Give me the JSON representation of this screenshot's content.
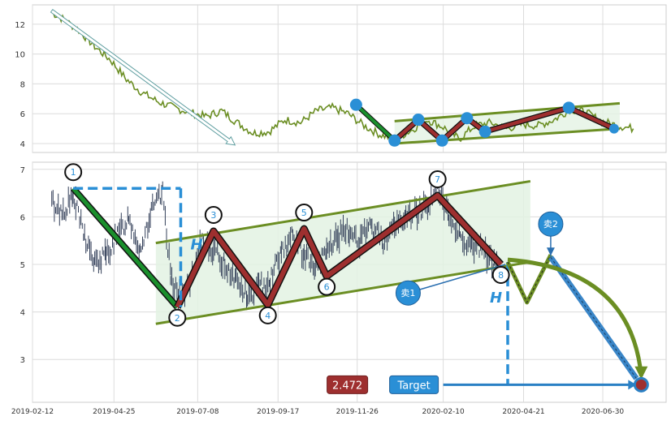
{
  "chart_data": [
    {
      "type": "line",
      "panel": "overview",
      "xlim": [
        "2019-02-12",
        "2020-08-25"
      ],
      "ylim": [
        3.4,
        13.3
      ],
      "y_ticks": [
        4,
        6,
        8,
        10,
        12
      ],
      "grid": true,
      "colors": {
        "price": "#6b8e23",
        "channel": "#6b8e23",
        "fill": "#e3f2e3",
        "pattern": "#9e2f2f",
        "leg_down": "#1a8f2c",
        "node": "#2a8fd6",
        "arrow": "#5f9ea0"
      },
      "close_series": [
        {
          "x": "2019-03-01",
          "y": 12.8
        },
        {
          "x": "2019-03-12",
          "y": 12.3
        },
        {
          "x": "2019-03-25",
          "y": 11.6
        },
        {
          "x": "2019-04-08",
          "y": 10.5
        },
        {
          "x": "2019-04-22",
          "y": 9.6
        },
        {
          "x": "2019-05-06",
          "y": 8.3
        },
        {
          "x": "2019-05-20",
          "y": 7.4
        },
        {
          "x": "2019-06-03",
          "y": 6.8
        },
        {
          "x": "2019-06-17",
          "y": 6.4
        },
        {
          "x": "2019-07-01",
          "y": 6.1
        },
        {
          "x": "2019-07-15",
          "y": 5.8
        },
        {
          "x": "2019-07-29",
          "y": 6.2
        },
        {
          "x": "2019-08-12",
          "y": 5.4
        },
        {
          "x": "2019-08-26",
          "y": 4.7
        },
        {
          "x": "2019-09-09",
          "y": 4.8
        },
        {
          "x": "2019-09-23",
          "y": 5.6
        },
        {
          "x": "2019-10-07",
          "y": 5.4
        },
        {
          "x": "2019-10-21",
          "y": 6.2
        },
        {
          "x": "2019-11-04",
          "y": 6.4
        },
        {
          "x": "2019-11-18",
          "y": 6.0
        },
        {
          "x": "2019-12-02",
          "y": 5.2
        },
        {
          "x": "2019-12-16",
          "y": 4.6
        },
        {
          "x": "2019-12-30",
          "y": 4.3
        },
        {
          "x": "2020-01-13",
          "y": 4.9
        },
        {
          "x": "2020-01-27",
          "y": 5.6
        },
        {
          "x": "2020-02-10",
          "y": 5.1
        },
        {
          "x": "2020-02-24",
          "y": 4.3
        },
        {
          "x": "2020-03-09",
          "y": 5.2
        },
        {
          "x": "2020-03-23",
          "y": 5.4
        },
        {
          "x": "2020-04-06",
          "y": 5.0
        },
        {
          "x": "2020-04-20",
          "y": 5.3
        },
        {
          "x": "2020-05-04",
          "y": 5.2
        },
        {
          "x": "2020-05-18",
          "y": 5.6
        },
        {
          "x": "2020-06-01",
          "y": 6.3
        },
        {
          "x": "2020-06-15",
          "y": 6.1
        },
        {
          "x": "2020-06-29",
          "y": 5.5
        },
        {
          "x": "2020-07-13",
          "y": 5.2
        },
        {
          "x": "2020-07-27",
          "y": 5.0
        }
      ],
      "arrow": [
        {
          "x": "2019-03-01",
          "y": 12.9
        },
        {
          "x": "2019-08-10",
          "y": 3.9
        }
      ],
      "pattern_points": [
        {
          "x": "2019-11-25",
          "y": 6.6
        },
        {
          "x": "2019-12-29",
          "y": 4.2
        },
        {
          "x": "2020-01-19",
          "y": 5.6
        },
        {
          "x": "2020-02-09",
          "y": 4.2
        },
        {
          "x": "2020-03-02",
          "y": 5.7
        },
        {
          "x": "2020-03-18",
          "y": 4.8
        },
        {
          "x": "2020-05-31",
          "y": 6.4
        },
        {
          "x": "2020-07-10",
          "y": 5.0
        }
      ],
      "channel_upper": [
        {
          "x": "2019-12-29",
          "y": 5.5
        },
        {
          "x": "2020-07-15",
          "y": 6.7
        }
      ],
      "channel_lower": [
        {
          "x": "2019-12-29",
          "y": 4.0
        },
        {
          "x": "2020-07-15",
          "y": 5.0
        }
      ]
    },
    {
      "type": "candlestick",
      "panel": "detail",
      "xlim": [
        "2019-02-12",
        "2020-08-25"
      ],
      "ylim": [
        2.1,
        7.15
      ],
      "y_ticks": [
        3,
        4,
        5,
        6,
        7
      ],
      "x_ticks": [
        "2019-02-12",
        "2019-04-25",
        "2019-07-08",
        "2019-09-17",
        "2019-11-26",
        "2020-02-10",
        "2020-04-21",
        "2020-06-30"
      ],
      "grid": true,
      "colors": {
        "candle": "#34405a",
        "channel": "#6b8e23",
        "fill": "#e3f2e3",
        "pattern": "#9e2f2f",
        "leg_down": "#1a8f2c",
        "blue": "#2a8fd6",
        "target_box": "#9e2f2f"
      },
      "price_series": [
        {
          "x": "2019-03-01",
          "y": 6.3
        },
        {
          "x": "2019-03-10",
          "y": 6.1
        },
        {
          "x": "2019-03-20",
          "y": 6.4
        },
        {
          "x": "2019-03-30",
          "y": 5.6
        },
        {
          "x": "2019-04-08",
          "y": 5.0
        },
        {
          "x": "2019-04-18",
          "y": 5.2
        },
        {
          "x": "2019-04-28",
          "y": 5.6
        },
        {
          "x": "2019-05-08",
          "y": 6.0
        },
        {
          "x": "2019-05-18",
          "y": 5.3
        },
        {
          "x": "2019-05-28",
          "y": 6.1
        },
        {
          "x": "2019-06-07",
          "y": 6.5
        },
        {
          "x": "2019-06-14",
          "y": 4.8
        },
        {
          "x": "2019-06-22",
          "y": 4.3
        },
        {
          "x": "2019-07-02",
          "y": 4.6
        },
        {
          "x": "2019-07-12",
          "y": 5.5
        },
        {
          "x": "2019-07-22",
          "y": 5.3
        },
        {
          "x": "2019-08-01",
          "y": 5.0
        },
        {
          "x": "2019-08-11",
          "y": 4.7
        },
        {
          "x": "2019-08-21",
          "y": 4.3
        },
        {
          "x": "2019-08-31",
          "y": 4.5
        },
        {
          "x": "2019-09-10",
          "y": 4.7
        },
        {
          "x": "2019-09-20",
          "y": 5.3
        },
        {
          "x": "2019-09-30",
          "y": 5.6
        },
        {
          "x": "2019-10-10",
          "y": 5.2
        },
        {
          "x": "2019-10-20",
          "y": 4.9
        },
        {
          "x": "2019-10-30",
          "y": 5.3
        },
        {
          "x": "2019-11-09",
          "y": 5.6
        },
        {
          "x": "2019-11-19",
          "y": 5.7
        },
        {
          "x": "2019-11-29",
          "y": 5.5
        },
        {
          "x": "2019-12-09",
          "y": 5.8
        },
        {
          "x": "2019-12-19",
          "y": 5.5
        },
        {
          "x": "2019-12-29",
          "y": 5.8
        },
        {
          "x": "2020-01-08",
          "y": 6.0
        },
        {
          "x": "2020-01-18",
          "y": 6.1
        },
        {
          "x": "2020-01-28",
          "y": 6.3
        },
        {
          "x": "2020-02-05",
          "y": 6.6
        },
        {
          "x": "2020-02-15",
          "y": 6.0
        },
        {
          "x": "2020-02-25",
          "y": 5.6
        },
        {
          "x": "2020-03-06",
          "y": 5.4
        },
        {
          "x": "2020-03-16",
          "y": 5.3
        },
        {
          "x": "2020-03-26",
          "y": 5.0
        },
        {
          "x": "2020-03-30",
          "y": 5.1
        }
      ],
      "pattern_points": [
        {
          "x": "2019-03-20",
          "y": 6.6,
          "label": "1"
        },
        {
          "x": "2019-06-20",
          "y": 4.1,
          "label": "2"
        },
        {
          "x": "2019-07-22",
          "y": 5.7,
          "label": "3"
        },
        {
          "x": "2019-09-08",
          "y": 4.15,
          "label": "4"
        },
        {
          "x": "2019-10-10",
          "y": 5.75,
          "label": "5"
        },
        {
          "x": "2019-10-30",
          "y": 4.75,
          "label": "6"
        },
        {
          "x": "2020-02-05",
          "y": 6.45,
          "label": "7"
        },
        {
          "x": "2020-04-01",
          "y": 5.0,
          "label": "8"
        }
      ],
      "channel_upper": [
        {
          "x": "2019-06-01",
          "y": 5.45
        },
        {
          "x": "2020-04-27",
          "y": 6.75
        }
      ],
      "channel_lower": [
        {
          "x": "2019-06-01",
          "y": 3.75
        },
        {
          "x": "2020-04-27",
          "y": 5.05
        }
      ],
      "h_marker_1": {
        "x": "2019-06-23",
        "y_top": 6.6,
        "y_bottom": 4.1,
        "x_start": "2019-03-20",
        "label": "H"
      },
      "h_marker_2": {
        "x": "2020-04-07",
        "y_top": 5.05,
        "y_bottom": 2.47,
        "label": "H"
      },
      "projection": [
        {
          "x": "2020-04-07",
          "y": 5.05
        },
        {
          "x": "2020-04-24",
          "y": 4.2
        },
        {
          "x": "2020-05-15",
          "y": 5.2
        }
      ],
      "sell_1": {
        "label": "卖1",
        "x": "2020-04-05",
        "y": 5.0,
        "bubble_x": "2020-01-10",
        "bubble_y": 4.4
      },
      "sell_2": {
        "label": "卖2",
        "x": "2020-05-15",
        "y": 5.15,
        "bubble_x": "2020-05-15",
        "bubble_y": 5.85
      },
      "target": {
        "label": "Target",
        "value": "2.472",
        "x": "2020-08-03",
        "y": 2.47,
        "arrow_from_x": "2020-02-10"
      },
      "curve": [
        {
          "x": "2020-04-07",
          "y": 5.1
        },
        {
          "x": "2020-07-25",
          "y": 4.9
        },
        {
          "x": "2020-08-03",
          "y": 2.65
        }
      ],
      "sell2_line": [
        {
          "x": "2020-05-15",
          "y": 5.15
        },
        {
          "x": "2020-08-03",
          "y": 2.5
        }
      ]
    }
  ]
}
